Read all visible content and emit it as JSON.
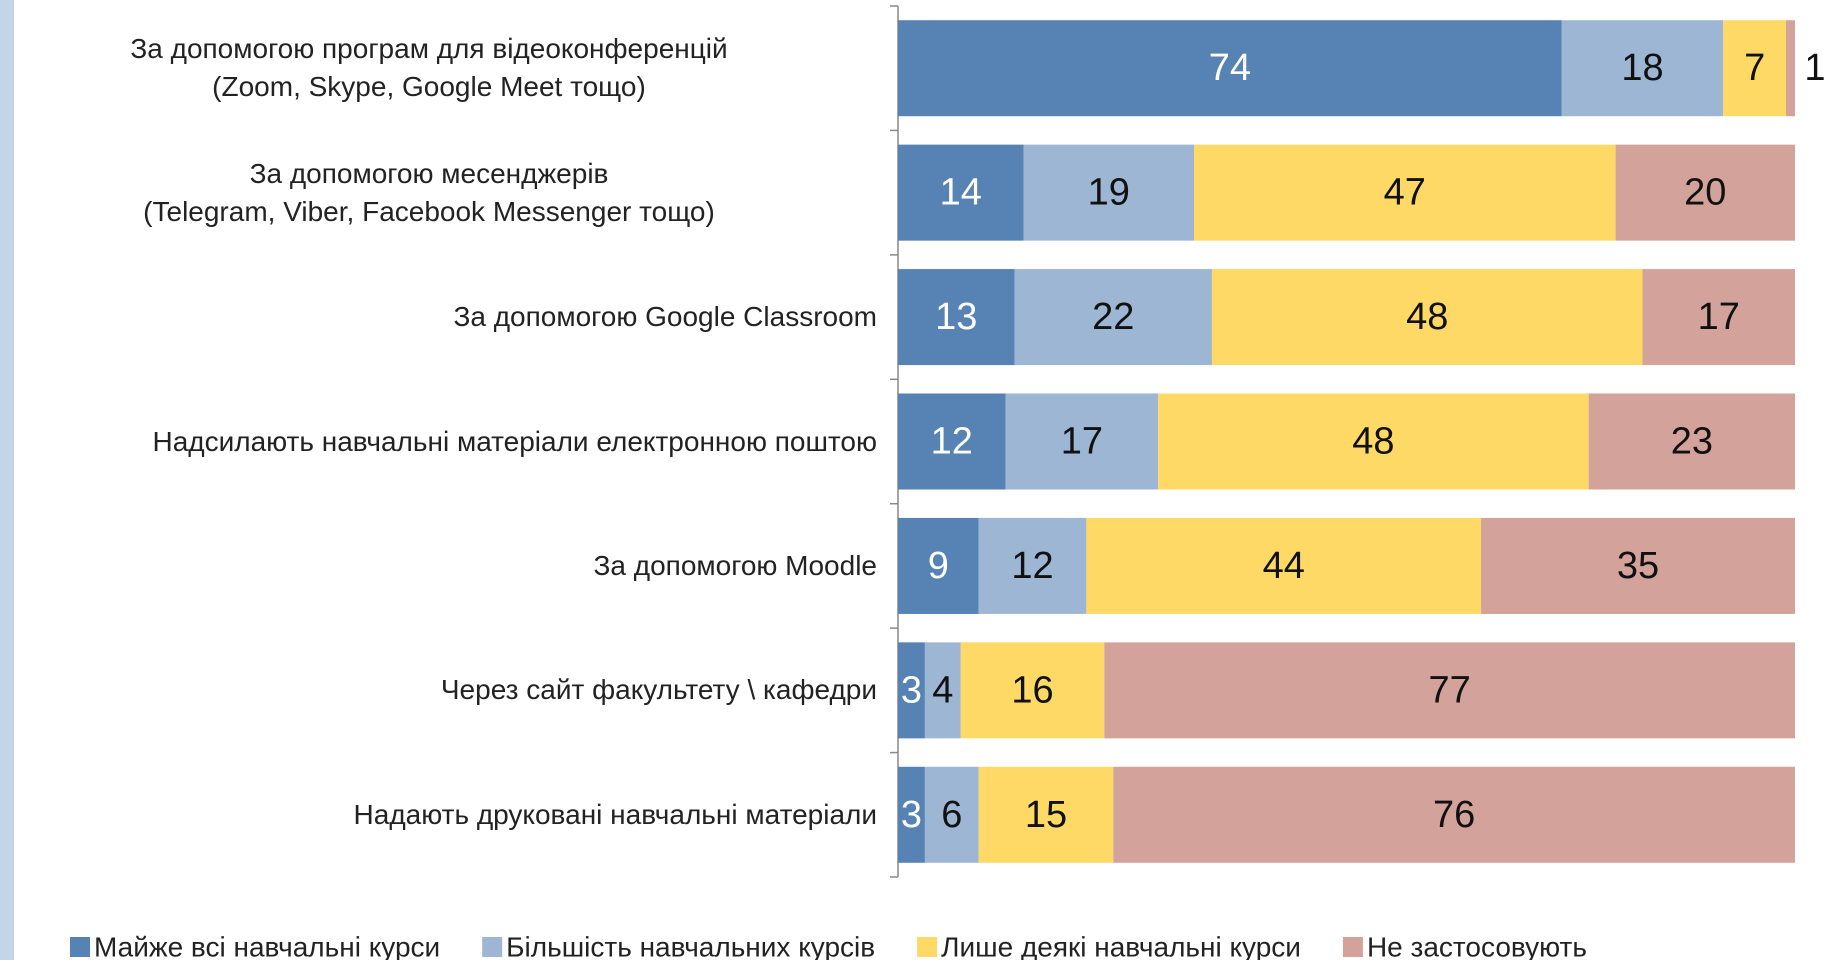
{
  "chart_data": {
    "type": "stacked-bar-horizontal",
    "categories": [
      "За допомогою програм для відеоконференцій\n(Zoom, Skype, Google Meet тощо)",
      "За допомогою месенджерів\n(Telegram, Viber, Facebook Messenger тощо)",
      "За допомогою Google Classroom",
      "Надсилають навчальні матеріали електронною поштою",
      "За допомогою Moodle",
      "Через сайт факультету \\ кафедри",
      "Надають друковані навчальні матеріали"
    ],
    "series": [
      {
        "name": "Майже всі навчальні курси",
        "color": "#5682b4",
        "values": [
          74,
          14,
          13,
          12,
          9,
          3,
          3
        ]
      },
      {
        "name": "Більшість навчальних курсів",
        "color": "#9db6d4",
        "values": [
          18,
          19,
          22,
          17,
          12,
          4,
          6
        ]
      },
      {
        "name": "Лише деякі навчальні курси",
        "color": "#ffd966",
        "values": [
          7,
          47,
          48,
          48,
          44,
          16,
          15
        ]
      },
      {
        "name": "Не застосовують",
        "color": "#d3a29a",
        "values": [
          1,
          20,
          17,
          23,
          35,
          77,
          76
        ]
      }
    ],
    "legend": "bottom"
  }
}
